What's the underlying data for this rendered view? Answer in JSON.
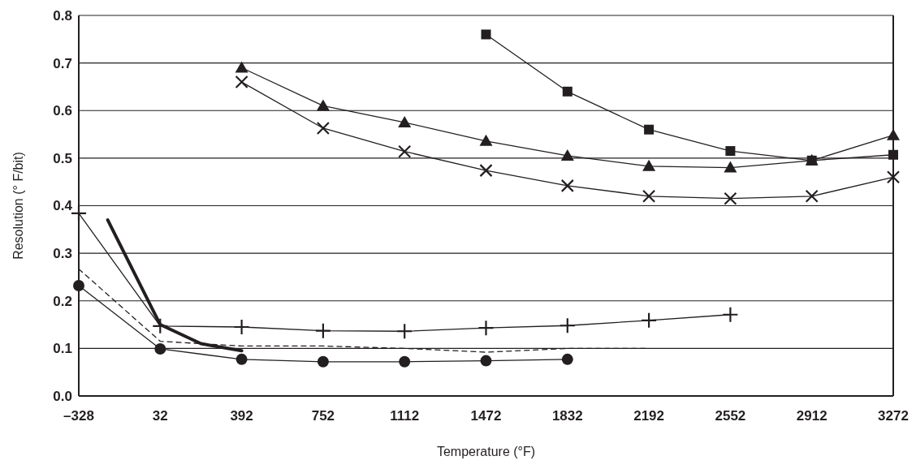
{
  "chart_data": {
    "type": "line",
    "xlabel": "Temperature (°F)",
    "ylabel": "Resolution (° F/bit)",
    "xlim": [
      -328,
      3272
    ],
    "xticks": [
      {
        "value": -328,
        "label": "–328"
      },
      32,
      392,
      752,
      1112,
      1472,
      1832,
      2192,
      2552,
      2912,
      3272
    ],
    "ylim": [
      0,
      0.8
    ],
    "yticks": [
      {
        "value": 0,
        "label": "0.0"
      },
      0.1,
      0.2,
      0.3,
      0.4,
      0.5,
      0.6,
      0.7,
      0.8
    ],
    "grid": "y",
    "series": [
      {
        "color": "#231f20",
        "marker": "square",
        "x": [
          1472,
          1832,
          2192,
          2552,
          2912,
          3272
        ],
        "values": [
          0.76,
          0.64,
          0.56,
          0.515,
          0.495,
          0.507
        ]
      },
      {
        "color": "#231f20",
        "marker": "triangle",
        "x": [
          392,
          752,
          1112,
          1472,
          1832,
          2192,
          2552,
          2912,
          3272
        ],
        "values": [
          0.69,
          0.61,
          0.575,
          0.536,
          0.505,
          0.483,
          0.48,
          0.495,
          0.548
        ]
      },
      {
        "color": "#231f20",
        "marker": "cross",
        "x": [
          392,
          752,
          1112,
          1472,
          1832,
          2192,
          2552,
          2912,
          3272
        ],
        "values": [
          0.66,
          0.563,
          0.514,
          0.474,
          0.442,
          0.42,
          0.415,
          0.42,
          0.46
        ]
      },
      {
        "color": "#231f20",
        "marker": "plus",
        "x": [
          -328,
          32,
          392,
          752,
          1112,
          1472,
          1832,
          2192,
          2552
        ],
        "values": [
          0.384,
          0.147,
          0.145,
          0.137,
          0.136,
          0.143,
          0.148,
          0.159,
          0.171
        ]
      },
      {
        "color": "#231f20",
        "marker": "circle",
        "x": [
          -328,
          32,
          392,
          752,
          1112,
          1472,
          1832
        ],
        "values": [
          0.232,
          0.099,
          0.077,
          0.072,
          0.072,
          0.074,
          0.077
        ]
      },
      {
        "color": "#231f20",
        "marker": "none",
        "line_style": "dashed",
        "x": [
          -328,
          32,
          392,
          752,
          1112,
          1472,
          1832,
          2192
        ],
        "values": [
          0.267,
          0.115,
          0.105,
          0.105,
          0.1,
          0.092,
          0.1,
          0.1
        ]
      },
      {
        "color": "#231f20",
        "marker": "none",
        "x": [
          -200,
          32,
          212,
          392
        ],
        "values": [
          0.37,
          0.15,
          0.11,
          0.095
        ]
      }
    ]
  }
}
